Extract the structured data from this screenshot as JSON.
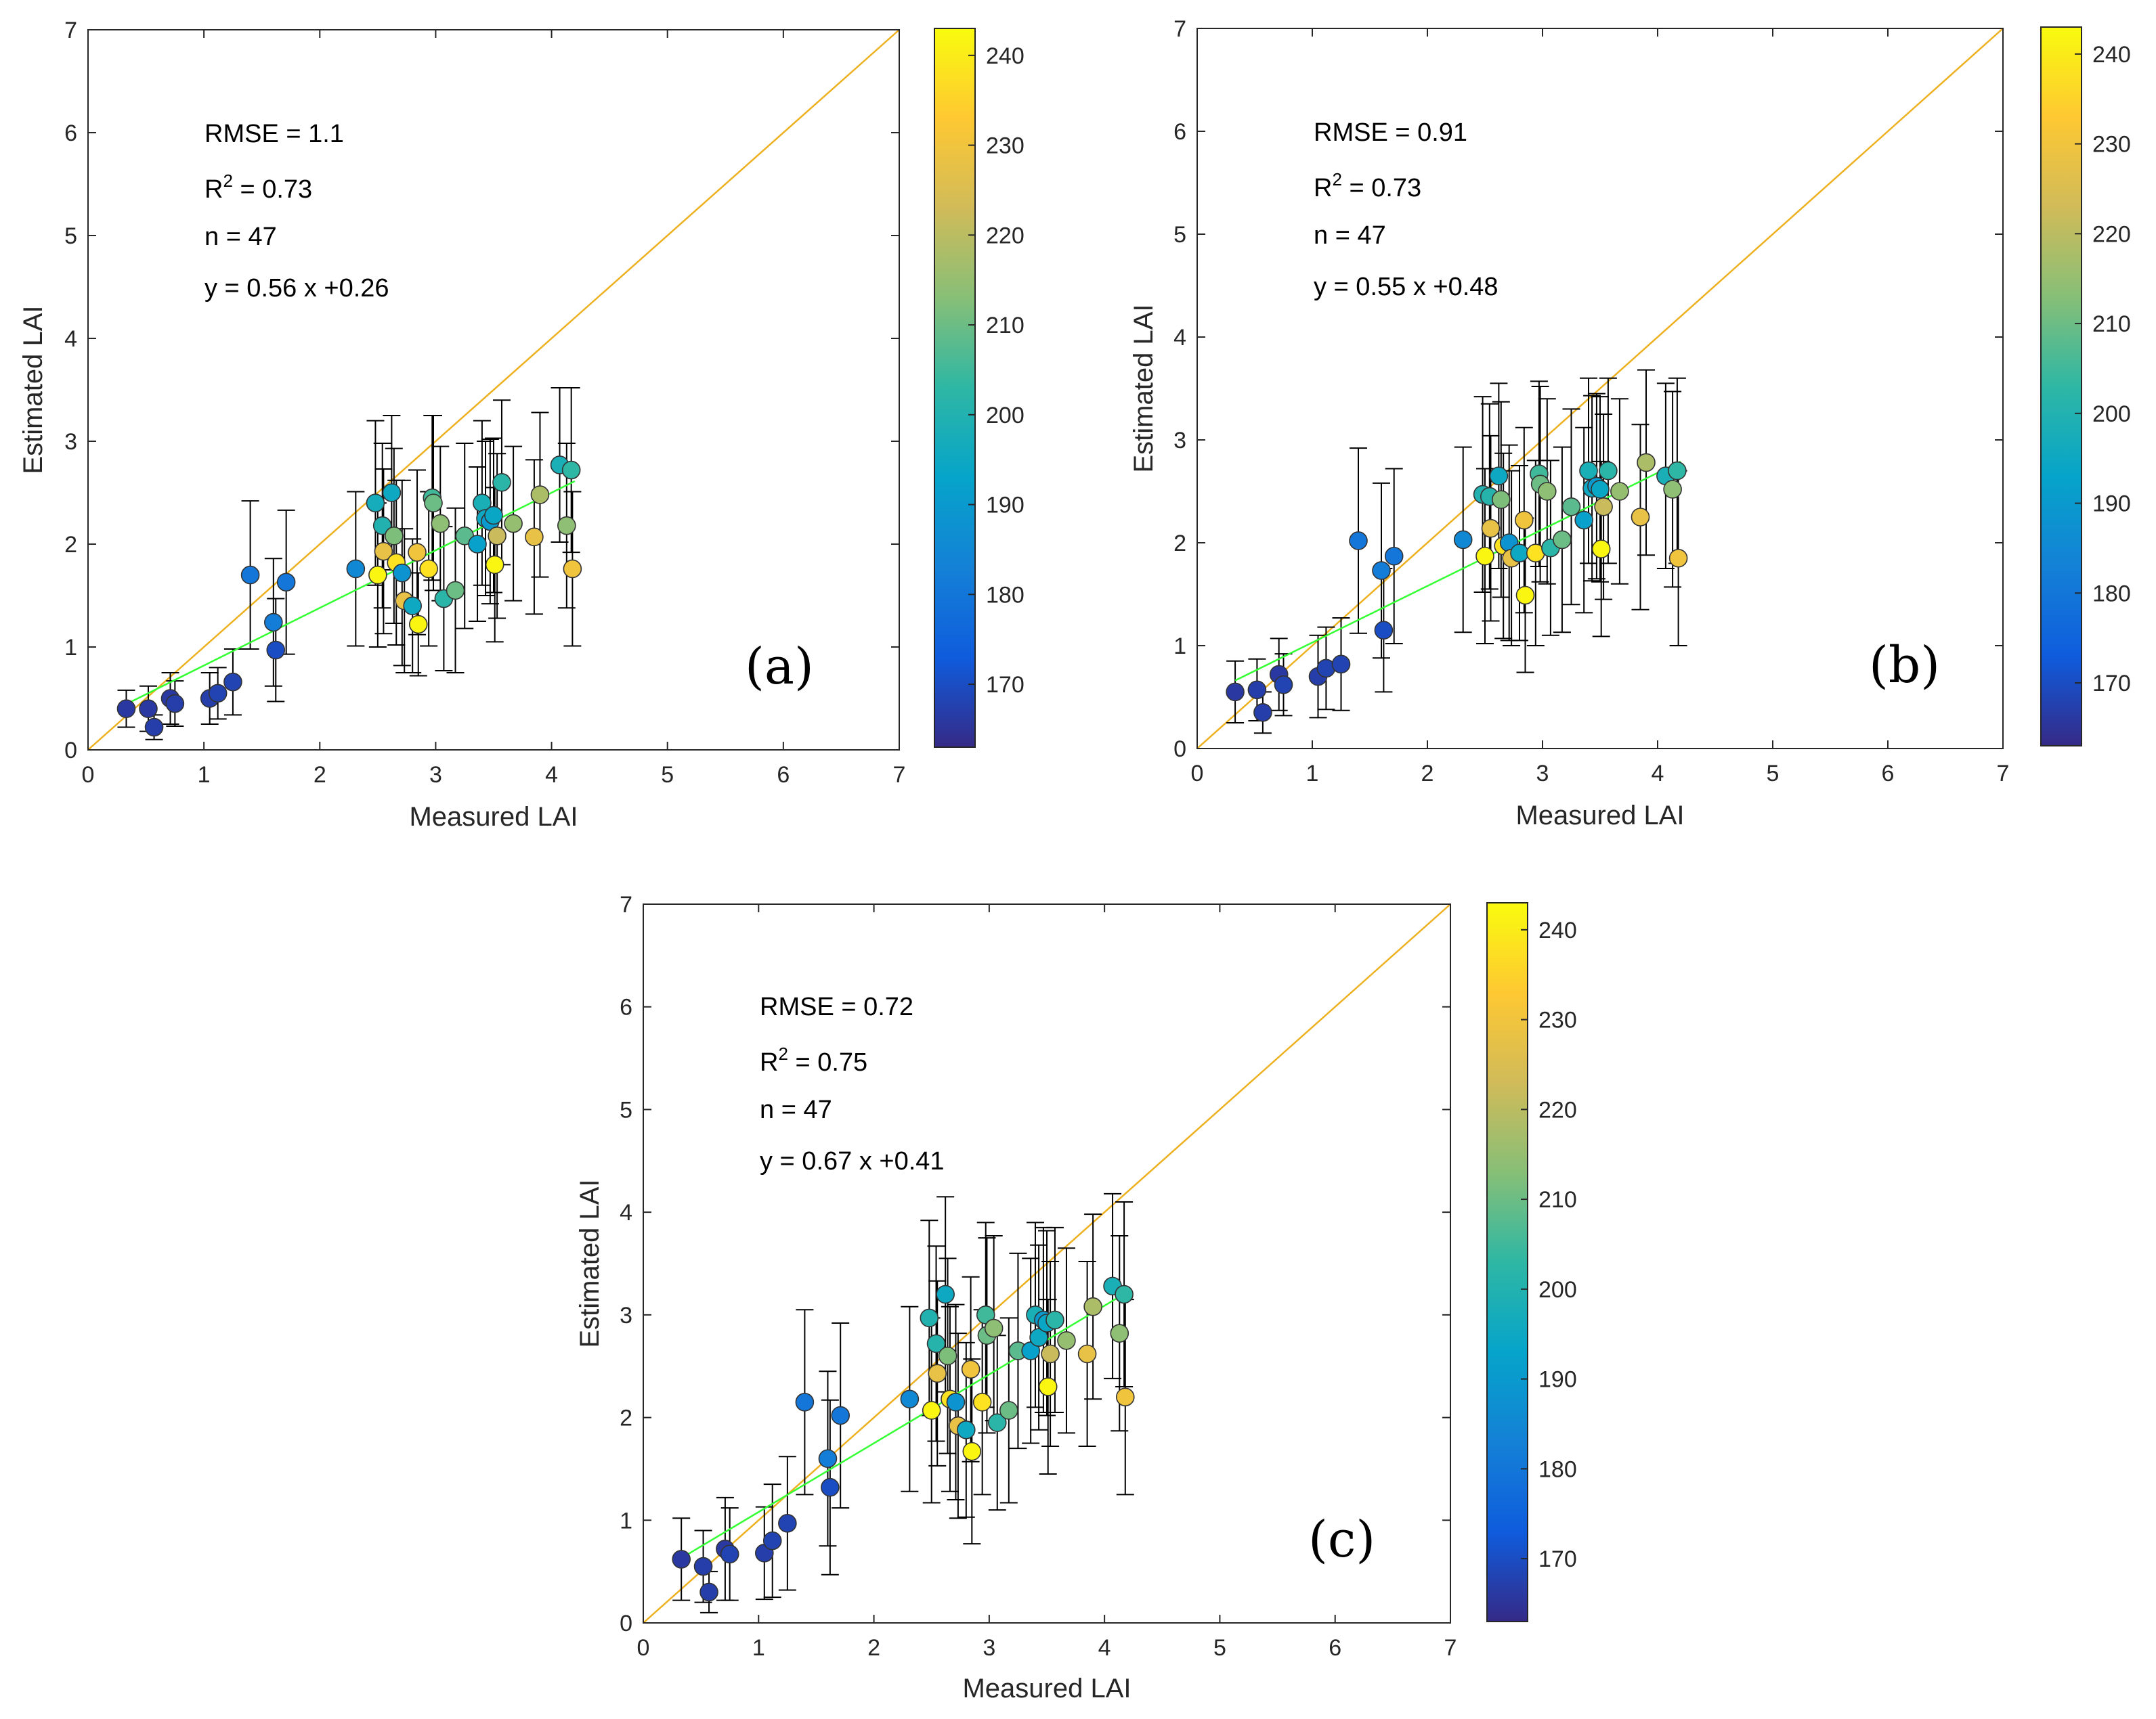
{
  "colors": {
    "one_to_one": "#EDB120",
    "fit": "#33FF33",
    "axis": "#262626",
    "parula": [
      "#352A87",
      "#0F5CDD",
      "#1481D6",
      "#06A4CA",
      "#2EB7A4",
      "#87BF77",
      "#D1BB59",
      "#FEC832",
      "#F9FB0E"
    ]
  },
  "chart_data": [
    {
      "type": "scatter",
      "panel_label": "(a)",
      "xlabel": "Measured LAI",
      "ylabel": "Estimated LAI",
      "xlim": [
        0,
        7
      ],
      "ylim": [
        0,
        7
      ],
      "xticks": [
        "0",
        "1",
        "2",
        "3",
        "4",
        "5",
        "6",
        "7"
      ],
      "yticks": [
        "0",
        "1",
        "2",
        "3",
        "4",
        "5",
        "6",
        "7"
      ],
      "stats": {
        "rmse": "RMSE = 1.1",
        "r2_prefix": "R",
        "r2_sup": "2",
        "r2_value": " = 0.73",
        "n": "n = 47",
        "eq": "y = 0.56 x +0.26"
      },
      "fit": {
        "slope": 0.56,
        "intercept": 0.26,
        "x_range": [
          0.33,
          4.2
        ]
      },
      "colorbar": {
        "min": 163,
        "max": 243,
        "ticks": [
          "170",
          "180",
          "190",
          "200",
          "210",
          "220",
          "230",
          "240"
        ]
      },
      "points": [
        {
          "x": 0.33,
          "y": 0.4,
          "err": 0.18,
          "c": 166
        },
        {
          "x": 0.52,
          "y": 0.4,
          "err": 0.22,
          "c": 166
        },
        {
          "x": 0.57,
          "y": 0.22,
          "err": 0.12,
          "c": 167
        },
        {
          "x": 0.71,
          "y": 0.5,
          "err": 0.25,
          "c": 166
        },
        {
          "x": 0.75,
          "y": 0.45,
          "err": 0.22,
          "c": 167
        },
        {
          "x": 1.05,
          "y": 0.5,
          "err": 0.25,
          "c": 167
        },
        {
          "x": 1.12,
          "y": 0.55,
          "err": 0.25,
          "c": 168
        },
        {
          "x": 1.25,
          "y": 0.66,
          "err": 0.32,
          "c": 168
        },
        {
          "x": 1.4,
          "y": 1.7,
          "err": 0.72,
          "c": 180
        },
        {
          "x": 1.6,
          "y": 1.24,
          "err": 0.62,
          "c": 182
        },
        {
          "x": 1.62,
          "y": 0.97,
          "err": 0.5,
          "c": 170
        },
        {
          "x": 1.71,
          "y": 1.63,
          "err": 0.7,
          "c": 180
        },
        {
          "x": 2.31,
          "y": 1.76,
          "err": 0.75,
          "c": 185
        },
        {
          "x": 2.48,
          "y": 2.4,
          "err": 0.8,
          "c": 197
        },
        {
          "x": 2.5,
          "y": 1.7,
          "err": 0.7,
          "c": 242
        },
        {
          "x": 2.54,
          "y": 2.18,
          "err": 0.8,
          "c": 200
        },
        {
          "x": 2.55,
          "y": 1.93,
          "err": 0.8,
          "c": 228
        },
        {
          "x": 2.62,
          "y": 2.5,
          "err": 0.75,
          "c": 195
        },
        {
          "x": 2.64,
          "y": 2.08,
          "err": 0.85,
          "c": 212
        },
        {
          "x": 2.66,
          "y": 1.82,
          "err": 0.8,
          "c": 238
        },
        {
          "x": 2.71,
          "y": 1.72,
          "err": 0.9,
          "c": 188
        },
        {
          "x": 2.73,
          "y": 1.45,
          "err": 0.7,
          "c": 228
        },
        {
          "x": 2.8,
          "y": 1.4,
          "err": 0.65,
          "c": 195
        },
        {
          "x": 2.84,
          "y": 1.92,
          "err": 0.8,
          "c": 230
        },
        {
          "x": 2.85,
          "y": 1.22,
          "err": 0.5,
          "c": 242
        },
        {
          "x": 2.94,
          "y": 1.76,
          "err": 0.75,
          "c": 238
        },
        {
          "x": 2.97,
          "y": 2.45,
          "err": 0.8,
          "c": 205
        },
        {
          "x": 2.98,
          "y": 2.4,
          "err": 0.85,
          "c": 210
        },
        {
          "x": 3.04,
          "y": 2.2,
          "err": 0.75,
          "c": 214
        },
        {
          "x": 3.07,
          "y": 1.47,
          "err": 0.7,
          "c": 202
        },
        {
          "x": 3.17,
          "y": 1.55,
          "err": 0.8,
          "c": 210
        },
        {
          "x": 3.25,
          "y": 2.08,
          "err": 0.9,
          "c": 208
        },
        {
          "x": 3.36,
          "y": 2.0,
          "err": 0.75,
          "c": 192
        },
        {
          "x": 3.4,
          "y": 2.4,
          "err": 0.8,
          "c": 198
        },
        {
          "x": 3.43,
          "y": 2.25,
          "err": 0.75,
          "c": 195
        },
        {
          "x": 3.47,
          "y": 2.22,
          "err": 0.8,
          "c": 190
        },
        {
          "x": 3.5,
          "y": 2.28,
          "err": 0.75,
          "c": 194
        },
        {
          "x": 3.51,
          "y": 1.8,
          "err": 0.75,
          "c": 242
        },
        {
          "x": 3.53,
          "y": 2.08,
          "err": 0.8,
          "c": 222
        },
        {
          "x": 3.57,
          "y": 2.6,
          "err": 0.8,
          "c": 202
        },
        {
          "x": 3.67,
          "y": 2.2,
          "err": 0.75,
          "c": 215
        },
        {
          "x": 3.85,
          "y": 2.07,
          "err": 0.75,
          "c": 228
        },
        {
          "x": 3.9,
          "y": 2.48,
          "err": 0.8,
          "c": 218
        },
        {
          "x": 4.07,
          "y": 2.77,
          "err": 0.75,
          "c": 198
        },
        {
          "x": 4.13,
          "y": 2.18,
          "err": 0.8,
          "c": 214
        },
        {
          "x": 4.17,
          "y": 2.72,
          "err": 0.8,
          "c": 203
        },
        {
          "x": 4.18,
          "y": 1.76,
          "err": 0.75,
          "c": 230
        }
      ]
    },
    {
      "type": "scatter",
      "panel_label": "(b)",
      "xlabel": "Measured LAI",
      "ylabel": "Estimated LAI",
      "xlim": [
        0,
        7
      ],
      "ylim": [
        0,
        7
      ],
      "xticks": [
        "0",
        "1",
        "2",
        "3",
        "4",
        "5",
        "6",
        "7"
      ],
      "yticks": [
        "0",
        "1",
        "2",
        "3",
        "4",
        "5",
        "6",
        "7"
      ],
      "stats": {
        "rmse": "RMSE = 0.91",
        "r2_prefix": "R",
        "r2_sup": "2",
        "r2_value": " = 0.73",
        "n": "n = 47",
        "eq": "y = 0.55 x +0.48"
      },
      "fit": {
        "slope": 0.55,
        "intercept": 0.48,
        "x_range": [
          0.33,
          4.2
        ]
      },
      "colorbar": {
        "min": 163,
        "max": 243,
        "ticks": [
          "170",
          "180",
          "190",
          "200",
          "210",
          "220",
          "230",
          "240"
        ]
      },
      "points": [
        {
          "x": 0.33,
          "y": 0.55,
          "err": 0.3,
          "c": 166
        },
        {
          "x": 0.52,
          "y": 0.57,
          "err": 0.3,
          "c": 167
        },
        {
          "x": 0.57,
          "y": 0.35,
          "err": 0.2,
          "c": 167
        },
        {
          "x": 0.71,
          "y": 0.72,
          "err": 0.35,
          "c": 166
        },
        {
          "x": 0.75,
          "y": 0.62,
          "err": 0.3,
          "c": 168
        },
        {
          "x": 1.05,
          "y": 0.7,
          "err": 0.4,
          "c": 167
        },
        {
          "x": 1.12,
          "y": 0.78,
          "err": 0.4,
          "c": 168
        },
        {
          "x": 1.25,
          "y": 0.82,
          "err": 0.45,
          "c": 168
        },
        {
          "x": 1.4,
          "y": 2.02,
          "err": 0.9,
          "c": 180
        },
        {
          "x": 1.6,
          "y": 1.73,
          "err": 0.85,
          "c": 182
        },
        {
          "x": 1.62,
          "y": 1.15,
          "err": 0.6,
          "c": 170
        },
        {
          "x": 1.71,
          "y": 1.87,
          "err": 0.85,
          "c": 180
        },
        {
          "x": 2.31,
          "y": 2.03,
          "err": 0.9,
          "c": 185
        },
        {
          "x": 2.48,
          "y": 2.47,
          "err": 0.95,
          "c": 200
        },
        {
          "x": 2.5,
          "y": 1.87,
          "err": 0.85,
          "c": 242
        },
        {
          "x": 2.54,
          "y": 2.45,
          "err": 0.9,
          "c": 201
        },
        {
          "x": 2.55,
          "y": 2.14,
          "err": 0.9,
          "c": 228
        },
        {
          "x": 2.62,
          "y": 2.65,
          "err": 0.9,
          "c": 195
        },
        {
          "x": 2.64,
          "y": 2.42,
          "err": 0.95,
          "c": 212
        },
        {
          "x": 2.66,
          "y": 1.97,
          "err": 0.9,
          "c": 238
        },
        {
          "x": 2.71,
          "y": 2.0,
          "err": 0.95,
          "c": 188
        },
        {
          "x": 2.73,
          "y": 1.85,
          "err": 0.85,
          "c": 228
        },
        {
          "x": 2.8,
          "y": 1.9,
          "err": 0.85,
          "c": 195
        },
        {
          "x": 2.84,
          "y": 2.22,
          "err": 0.9,
          "c": 230
        },
        {
          "x": 2.85,
          "y": 1.49,
          "err": 0.75,
          "c": 242
        },
        {
          "x": 2.94,
          "y": 1.9,
          "err": 0.9,
          "c": 238
        },
        {
          "x": 2.97,
          "y": 2.67,
          "err": 0.9,
          "c": 205
        },
        {
          "x": 2.98,
          "y": 2.57,
          "err": 0.95,
          "c": 210
        },
        {
          "x": 3.04,
          "y": 2.5,
          "err": 0.9,
          "c": 214
        },
        {
          "x": 3.07,
          "y": 1.95,
          "err": 0.85,
          "c": 202
        },
        {
          "x": 3.17,
          "y": 2.03,
          "err": 0.9,
          "c": 210
        },
        {
          "x": 3.25,
          "y": 2.35,
          "err": 0.95,
          "c": 208
        },
        {
          "x": 3.36,
          "y": 2.22,
          "err": 0.9,
          "c": 192
        },
        {
          "x": 3.4,
          "y": 2.7,
          "err": 0.9,
          "c": 198
        },
        {
          "x": 3.43,
          "y": 2.53,
          "err": 0.9,
          "c": 195
        },
        {
          "x": 3.47,
          "y": 2.55,
          "err": 0.9,
          "c": 190
        },
        {
          "x": 3.5,
          "y": 2.52,
          "err": 0.9,
          "c": 194
        },
        {
          "x": 3.51,
          "y": 1.94,
          "err": 0.85,
          "c": 242
        },
        {
          "x": 3.53,
          "y": 2.35,
          "err": 0.9,
          "c": 222
        },
        {
          "x": 3.57,
          "y": 2.7,
          "err": 0.9,
          "c": 202
        },
        {
          "x": 3.67,
          "y": 2.5,
          "err": 0.9,
          "c": 215
        },
        {
          "x": 3.85,
          "y": 2.25,
          "err": 0.9,
          "c": 228
        },
        {
          "x": 3.9,
          "y": 2.78,
          "err": 0.9,
          "c": 218
        },
        {
          "x": 4.07,
          "y": 2.65,
          "err": 0.9,
          "c": 198
        },
        {
          "x": 4.13,
          "y": 2.52,
          "err": 0.95,
          "c": 214
        },
        {
          "x": 4.17,
          "y": 2.7,
          "err": 0.9,
          "c": 203
        },
        {
          "x": 4.18,
          "y": 1.85,
          "err": 0.85,
          "c": 230
        }
      ]
    },
    {
      "type": "scatter",
      "panel_label": "(c)",
      "xlabel": "Measured LAI",
      "ylabel": "Estimated LAI",
      "xlim": [
        0,
        7
      ],
      "ylim": [
        0,
        7
      ],
      "xticks": [
        "0",
        "1",
        "2",
        "3",
        "4",
        "5",
        "6",
        "7"
      ],
      "yticks": [
        "0",
        "1",
        "2",
        "3",
        "4",
        "5",
        "6",
        "7"
      ],
      "stats": {
        "rmse": "RMSE = 0.72",
        "r2_prefix": "R",
        "r2_sup": "2",
        "r2_value": " = 0.75",
        "n": "n = 47",
        "eq": "y = 0.67 x +0.41"
      },
      "fit": {
        "slope": 0.67,
        "intercept": 0.41,
        "x_range": [
          0.33,
          4.2
        ]
      },
      "colorbar": {
        "min": 163,
        "max": 243,
        "ticks": [
          "170",
          "180",
          "190",
          "200",
          "210",
          "220",
          "230",
          "240"
        ]
      },
      "points": [
        {
          "x": 0.33,
          "y": 0.62,
          "err": 0.4,
          "c": 166
        },
        {
          "x": 0.52,
          "y": 0.55,
          "err": 0.35,
          "c": 167
        },
        {
          "x": 0.57,
          "y": 0.3,
          "err": 0.2,
          "c": 167
        },
        {
          "x": 0.71,
          "y": 0.72,
          "err": 0.5,
          "c": 166
        },
        {
          "x": 0.75,
          "y": 0.67,
          "err": 0.45,
          "c": 168
        },
        {
          "x": 1.05,
          "y": 0.68,
          "err": 0.45,
          "c": 167
        },
        {
          "x": 1.12,
          "y": 0.8,
          "err": 0.55,
          "c": 168
        },
        {
          "x": 1.25,
          "y": 0.97,
          "err": 0.65,
          "c": 168
        },
        {
          "x": 1.4,
          "y": 2.15,
          "err": 0.9,
          "c": 180
        },
        {
          "x": 1.6,
          "y": 1.6,
          "err": 0.85,
          "c": 182
        },
        {
          "x": 1.62,
          "y": 1.32,
          "err": 0.85,
          "c": 170
        },
        {
          "x": 1.71,
          "y": 2.02,
          "err": 0.9,
          "c": 180
        },
        {
          "x": 2.31,
          "y": 2.18,
          "err": 0.9,
          "c": 185
        },
        {
          "x": 2.48,
          "y": 2.97,
          "err": 0.95,
          "c": 200
        },
        {
          "x": 2.5,
          "y": 2.07,
          "err": 0.9,
          "c": 242
        },
        {
          "x": 2.54,
          "y": 2.72,
          "err": 0.95,
          "c": 201
        },
        {
          "x": 2.55,
          "y": 2.43,
          "err": 0.9,
          "c": 228
        },
        {
          "x": 2.62,
          "y": 3.2,
          "err": 0.95,
          "c": 195
        },
        {
          "x": 2.64,
          "y": 2.6,
          "err": 0.95,
          "c": 212
        },
        {
          "x": 2.66,
          "y": 2.18,
          "err": 0.9,
          "c": 238
        },
        {
          "x": 2.71,
          "y": 2.15,
          "err": 0.95,
          "c": 188
        },
        {
          "x": 2.73,
          "y": 1.92,
          "err": 0.9,
          "c": 228
        },
        {
          "x": 2.8,
          "y": 1.88,
          "err": 0.85,
          "c": 195
        },
        {
          "x": 2.84,
          "y": 2.47,
          "err": 0.9,
          "c": 230
        },
        {
          "x": 2.85,
          "y": 1.67,
          "err": 0.9,
          "c": 242
        },
        {
          "x": 2.94,
          "y": 2.15,
          "err": 0.9,
          "c": 238
        },
        {
          "x": 2.97,
          "y": 3.0,
          "err": 0.9,
          "c": 205
        },
        {
          "x": 2.98,
          "y": 2.8,
          "err": 0.95,
          "c": 210
        },
        {
          "x": 3.04,
          "y": 2.87,
          "err": 0.9,
          "c": 214
        },
        {
          "x": 3.07,
          "y": 1.95,
          "err": 0.85,
          "c": 202
        },
        {
          "x": 3.17,
          "y": 2.07,
          "err": 0.9,
          "c": 210
        },
        {
          "x": 3.25,
          "y": 2.65,
          "err": 0.95,
          "c": 208
        },
        {
          "x": 3.36,
          "y": 2.65,
          "err": 0.9,
          "c": 192
        },
        {
          "x": 3.4,
          "y": 3.0,
          "err": 0.9,
          "c": 198
        },
        {
          "x": 3.43,
          "y": 2.78,
          "err": 0.9,
          "c": 195
        },
        {
          "x": 3.47,
          "y": 2.95,
          "err": 0.9,
          "c": 190
        },
        {
          "x": 3.5,
          "y": 2.92,
          "err": 0.9,
          "c": 194
        },
        {
          "x": 3.51,
          "y": 2.3,
          "err": 0.85,
          "c": 242
        },
        {
          "x": 3.53,
          "y": 2.62,
          "err": 0.9,
          "c": 222
        },
        {
          "x": 3.57,
          "y": 2.95,
          "err": 0.9,
          "c": 202
        },
        {
          "x": 3.67,
          "y": 2.75,
          "err": 0.9,
          "c": 215
        },
        {
          "x": 3.85,
          "y": 2.62,
          "err": 0.9,
          "c": 228
        },
        {
          "x": 3.9,
          "y": 3.08,
          "err": 0.9,
          "c": 218
        },
        {
          "x": 4.07,
          "y": 3.28,
          "err": 0.9,
          "c": 198
        },
        {
          "x": 4.13,
          "y": 2.82,
          "err": 0.95,
          "c": 214
        },
        {
          "x": 4.17,
          "y": 3.2,
          "err": 0.9,
          "c": 203
        },
        {
          "x": 4.18,
          "y": 2.2,
          "err": 0.95,
          "c": 230
        }
      ]
    }
  ]
}
